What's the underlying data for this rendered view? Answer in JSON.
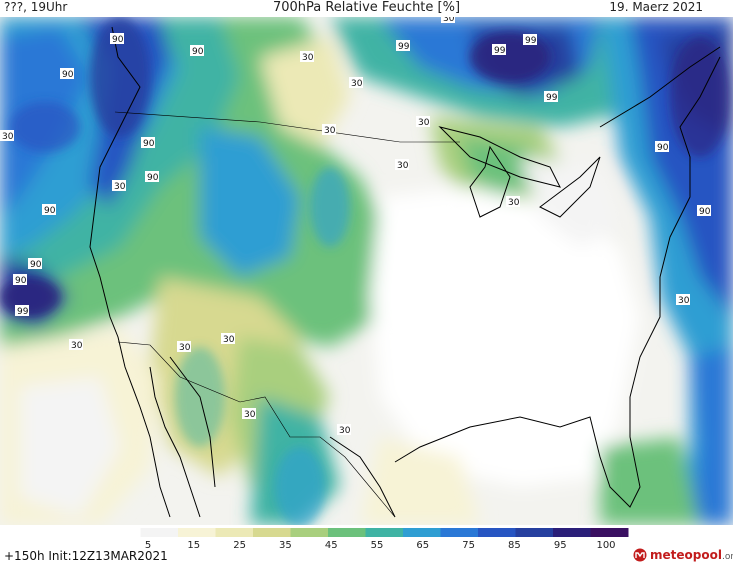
{
  "header": {
    "left": "???, 19Uhr",
    "title": "700hPa Relative Feuchte [%]",
    "right": "19. Maerz 2021"
  },
  "footer": {
    "forecast": "+150h  Init:12Z13MAR2021",
    "logo_text": "meteopool",
    "logo_suffix": ".org"
  },
  "colorbar": {
    "ticks": [
      "5",
      "15",
      "25",
      "35",
      "45",
      "55",
      "65",
      "75",
      "85",
      "95",
      "100"
    ],
    "colors": [
      "#ffffff",
      "#f4f4f4",
      "#f7f3d6",
      "#ece9b6",
      "#d7d990",
      "#a9cf7e",
      "#6cc17c",
      "#3fb3a4",
      "#2f9ed3",
      "#2a78d6",
      "#2755c2",
      "#263f9f",
      "#2b1f79",
      "#3a1061"
    ]
  },
  "contour_labels": [
    "90",
    "90",
    "90",
    "30",
    "99",
    "99",
    "99",
    "99",
    "90",
    "30",
    "90",
    "90",
    "30",
    "30",
    "30",
    "30",
    "90",
    "90",
    "30",
    "90",
    "90",
    "99",
    "30",
    "30",
    "30",
    "30",
    "30",
    "30",
    "30",
    "30"
  ]
}
